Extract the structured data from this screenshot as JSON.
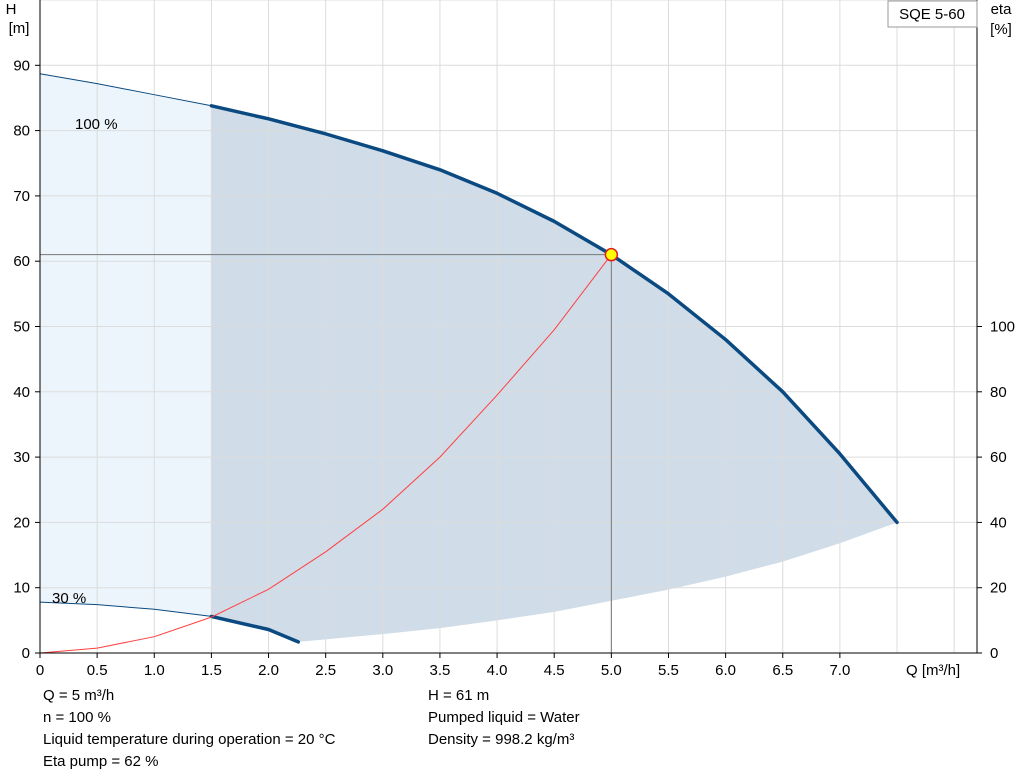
{
  "chart_data": {
    "type": "line",
    "product_label": "SQE 5-60",
    "x_axis": {
      "label": "Q [m³/h]",
      "range": [
        0,
        8.2
      ],
      "ticks": [
        0,
        0.5,
        1.0,
        1.5,
        2.0,
        2.5,
        3.0,
        3.5,
        4.0,
        4.5,
        5.0,
        5.5,
        6.0,
        6.5,
        7.0
      ],
      "tick_labels": [
        "0",
        "0.5",
        "1.0",
        "1.5",
        "2.0",
        "2.5",
        "3.0",
        "3.5",
        "4.0",
        "4.5",
        "5.0",
        "5.5",
        "6.0",
        "6.5",
        "7.0"
      ]
    },
    "y_left": {
      "label_line1": "H",
      "label_line2": "[m]",
      "range": [
        0,
        100
      ],
      "ticks": [
        0,
        10,
        20,
        30,
        40,
        50,
        60,
        70,
        80,
        90
      ],
      "tick_labels": [
        "0",
        "10",
        "20",
        "30",
        "40",
        "50",
        "60",
        "70",
        "80",
        "90"
      ]
    },
    "y_right": {
      "label_line1": "eta",
      "label_line2": "[%]",
      "range": [
        0,
        100
      ],
      "ticks": [
        0,
        20,
        40,
        60,
        80,
        100
      ],
      "tick_labels": [
        "0",
        "20",
        "40",
        "60",
        "80",
        "100"
      ],
      "note": "0-100 % mapped to H 0-50 m"
    },
    "grid": true,
    "series": [
      {
        "name": "100 %",
        "type": "pump-curve",
        "color": "#0b4a80",
        "x": [
          0,
          0.5,
          1.0,
          1.5,
          2.0,
          2.5,
          3.0,
          3.5,
          4.0,
          4.5,
          5.0,
          5.5,
          6.0,
          6.5,
          7.0,
          7.5
        ],
        "y": [
          88.7,
          87.2,
          85.5,
          83.8,
          81.8,
          79.5,
          76.9,
          74.0,
          70.4,
          66.1,
          61.0,
          55.0,
          48.0,
          40.0,
          30.5,
          20.0
        ],
        "thin_until_x": 1.5
      },
      {
        "name": "30 %",
        "type": "pump-curve",
        "color": "#0b4a80",
        "x": [
          0,
          0.5,
          1.0,
          1.5,
          2.0,
          2.26
        ],
        "y": [
          7.8,
          7.4,
          6.7,
          5.6,
          3.6,
          1.7
        ],
        "thin_until_x": 1.5
      },
      {
        "name": "Eta pump",
        "type": "efficiency",
        "color": "#ff4040",
        "x": [
          0,
          0.5,
          1.0,
          1.5,
          2.0,
          2.5,
          3.0,
          3.5,
          4.0,
          4.5,
          5.0
        ],
        "y": [
          0,
          1.5,
          5,
          11,
          19.5,
          31,
          44,
          60,
          79,
          99,
          122
        ]
      }
    ],
    "lower_envelope": {
      "x": [
        2.26,
        3.0,
        3.5,
        4.0,
        4.5,
        5.0,
        5.5,
        6.0,
        6.5,
        7.0,
        7.5
      ],
      "y": [
        1.7,
        2.9,
        3.8,
        5.0,
        6.3,
        8.0,
        9.7,
        11.7,
        14.0,
        16.8,
        20.0
      ]
    },
    "duty_point": {
      "x": 5.0,
      "y": 61
    },
    "duty_point_color": "#ffff00",
    "range_fill_color": "#d0dce8",
    "low_flow_fill_color": "#ecf4fc"
  },
  "info": {
    "left": [
      "Q = 5 m³/h",
      "n = 100 %",
      "Liquid temperature during operation = 20 °C",
      "Eta pump = 62 %"
    ],
    "right": [
      "H = 61 m",
      "Pumped liquid = Water",
      "Density = 998.2 kg/m³"
    ]
  }
}
